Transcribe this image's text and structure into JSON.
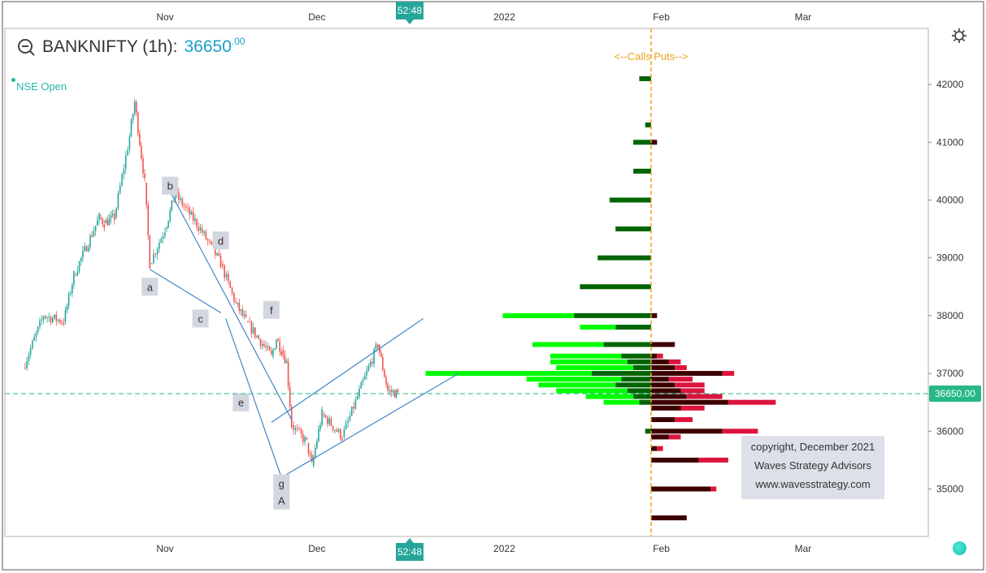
{
  "header": {
    "symbol": "BANKNIFTY (1h):",
    "price": "36650",
    "price_decimals": ".00",
    "status": "NSE Open",
    "icons": [
      "search-icon",
      "settings-icon"
    ]
  },
  "time_badge": "52:48",
  "volume_profile_label": "<--Calls  Puts-->",
  "copyright": [
    "copyright, December 2021",
    "Waves Strategy Advisors",
    "www.wavesstrategy.com"
  ],
  "colors": {
    "up_candle": "#26a69a",
    "down_candle": "#ef5350",
    "calls_light": "#00ff00",
    "calls_dark": "#006400",
    "puts_light": "#dc143c",
    "puts_dark": "#3d0000",
    "price_line": "#26b889",
    "wave_lines": "#3f87c9",
    "orange_line": "#f0a020"
  },
  "chart_data": {
    "type": "candlestick",
    "x_axis": {
      "ticks": [
        "Nov",
        "Dec",
        "2022",
        "Feb",
        "Mar"
      ],
      "range_start": "2021-10-04",
      "range_end": "2022-03-15"
    },
    "y_axis": {
      "ticks": [
        35000,
        36000,
        37000,
        38000,
        39000,
        40000,
        41000,
        42000
      ],
      "ylim": [
        34200,
        42900
      ],
      "current_price_label": "36650.00"
    },
    "price_path": [
      [
        "2021-10-04",
        37100
      ],
      [
        "2021-10-08",
        38000
      ],
      [
        "2021-10-12",
        37900
      ],
      [
        "2021-10-14",
        38700
      ],
      [
        "2021-10-19",
        39700
      ],
      [
        "2021-10-20",
        39600
      ],
      [
        "2021-10-22",
        39700
      ],
      [
        "2021-10-25",
        41100
      ],
      [
        "2021-10-26",
        41700
      ],
      [
        "2021-10-28",
        40300
      ],
      [
        "2021-10-29",
        38900
      ],
      [
        "2021-11-01",
        39500
      ],
      [
        "2021-11-03",
        40100
      ],
      [
        "2021-11-08",
        39500
      ],
      [
        "2021-11-12",
        38900
      ],
      [
        "2021-11-15",
        38200
      ],
      [
        "2021-11-17",
        37900
      ],
      [
        "2021-11-22",
        37300
      ],
      [
        "2021-11-23",
        37600
      ],
      [
        "2021-11-24",
        37400
      ],
      [
        "2021-11-25",
        37200
      ],
      [
        "2021-11-26",
        36100
      ],
      [
        "2021-11-29",
        35800
      ],
      [
        "2021-11-30",
        35400
      ],
      [
        "2021-12-02",
        36300
      ],
      [
        "2021-12-06",
        35900
      ],
      [
        "2021-12-09",
        36600
      ],
      [
        "2021-12-13",
        37500
      ],
      [
        "2021-12-15",
        36700
      ],
      [
        "2021-12-17",
        36650
      ]
    ],
    "wave_labels": [
      {
        "label": "a",
        "date": "2021-10-29",
        "price": 38500
      },
      {
        "label": "b",
        "date": "2021-11-02",
        "price": 40250
      },
      {
        "label": "c",
        "date": "2021-11-08",
        "price": 37950
      },
      {
        "label": "d",
        "date": "2021-11-12",
        "price": 39300
      },
      {
        "label": "e",
        "date": "2021-11-16",
        "price": 36500
      },
      {
        "label": "f",
        "date": "2021-11-22",
        "price": 38100
      },
      {
        "label": "g",
        "date": "2021-11-24",
        "price": 35100
      },
      {
        "label": "A",
        "date": "2021-11-24",
        "price": 34800
      }
    ],
    "trendlines": [
      [
        [
          "2021-10-29",
          38800
        ],
        [
          "2021-11-12",
          38050
        ]
      ],
      [
        [
          "2021-11-02",
          40150
        ],
        [
          "2021-11-26",
          36200
        ]
      ],
      [
        [
          "2021-11-13",
          37950
        ],
        [
          "2021-11-24",
          35200
        ]
      ],
      [
        [
          "2021-11-22",
          36150
        ],
        [
          "2021-12-22",
          37950
        ]
      ],
      [
        [
          "2021-11-24",
          35200
        ],
        [
          "2021-12-29",
          37000
        ]
      ]
    ],
    "volume_profile": {
      "price_step": 100,
      "calls_light": [
        [
          42100,
          0
        ],
        [
          41300,
          0
        ],
        [
          41000,
          0
        ],
        [
          40500,
          0
        ],
        [
          40000,
          0
        ],
        [
          39500,
          0
        ],
        [
          39000,
          0
        ],
        [
          38500,
          0
        ],
        [
          38000,
          12
        ],
        [
          37800,
          6
        ],
        [
          37500,
          12
        ],
        [
          37300,
          12
        ],
        [
          37200,
          13
        ],
        [
          37100,
          13
        ],
        [
          37000,
          28
        ],
        [
          36900,
          16
        ],
        [
          36800,
          13
        ],
        [
          36700,
          12
        ],
        [
          36600,
          8
        ],
        [
          36500,
          6
        ],
        [
          36000,
          0
        ],
        [
          35500,
          0
        ],
        [
          35000,
          0
        ],
        [
          34500,
          0
        ]
      ],
      "calls_dark": [
        [
          42100,
          2
        ],
        [
          41300,
          1
        ],
        [
          41000,
          3
        ],
        [
          40500,
          3
        ],
        [
          40000,
          7
        ],
        [
          39500,
          6
        ],
        [
          39000,
          9
        ],
        [
          38500,
          12
        ],
        [
          38000,
          13
        ],
        [
          37800,
          6
        ],
        [
          37500,
          8
        ],
        [
          37300,
          5
        ],
        [
          37200,
          4
        ],
        [
          37100,
          3
        ],
        [
          37000,
          10
        ],
        [
          36900,
          5
        ],
        [
          36800,
          6
        ],
        [
          36700,
          4
        ],
        [
          36600,
          3
        ],
        [
          36500,
          2
        ],
        [
          36000,
          1
        ],
        [
          35500,
          0
        ],
        [
          35000,
          0
        ],
        [
          34500,
          0
        ]
      ],
      "puts_dark": [
        [
          42100,
          0
        ],
        [
          41300,
          0
        ],
        [
          41000,
          1
        ],
        [
          40500,
          0
        ],
        [
          40000,
          0
        ],
        [
          39500,
          0
        ],
        [
          39000,
          0
        ],
        [
          38500,
          0
        ],
        [
          38000,
          1
        ],
        [
          37800,
          0
        ],
        [
          37500,
          4
        ],
        [
          37300,
          1
        ],
        [
          37200,
          3
        ],
        [
          37100,
          4
        ],
        [
          37000,
          12
        ],
        [
          36900,
          3
        ],
        [
          36800,
          4
        ],
        [
          36700,
          5
        ],
        [
          36600,
          6
        ],
        [
          36500,
          13
        ],
        [
          36400,
          5
        ],
        [
          36200,
          4
        ],
        [
          36000,
          12
        ],
        [
          35900,
          3
        ],
        [
          35700,
          1
        ],
        [
          35500,
          8
        ],
        [
          35000,
          10
        ],
        [
          34500,
          6
        ]
      ],
      "puts_light": [
        [
          42100,
          0
        ],
        [
          41300,
          0
        ],
        [
          41000,
          0
        ],
        [
          40500,
          0
        ],
        [
          40000,
          0
        ],
        [
          39500,
          0
        ],
        [
          39000,
          0
        ],
        [
          38500,
          0
        ],
        [
          38000,
          0
        ],
        [
          37800,
          0
        ],
        [
          37500,
          0
        ],
        [
          37300,
          1
        ],
        [
          37200,
          2
        ],
        [
          37100,
          2
        ],
        [
          37000,
          2
        ],
        [
          36900,
          4
        ],
        [
          36800,
          5
        ],
        [
          36700,
          4
        ],
        [
          36600,
          6
        ],
        [
          36500,
          8
        ],
        [
          36400,
          4
        ],
        [
          36200,
          3
        ],
        [
          36000,
          6
        ],
        [
          35900,
          2
        ],
        [
          35700,
          1
        ],
        [
          35500,
          5
        ],
        [
          35000,
          1
        ],
        [
          34500,
          0
        ]
      ]
    }
  }
}
